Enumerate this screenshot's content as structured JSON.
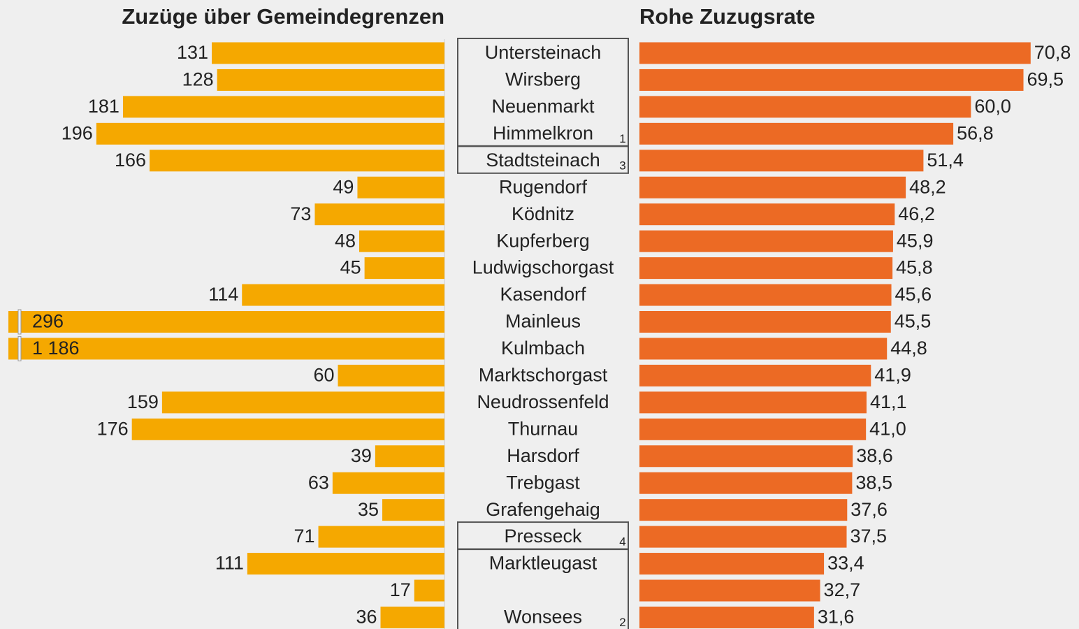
{
  "chart_data": [
    {
      "type": "bar",
      "title": "Zuzüge über Gemeindegrenzen",
      "color": "#f5a800",
      "xlim": [
        0,
        240
      ],
      "axis_break": true,
      "categories": [
        "Untersteinach",
        "Wirsberg",
        "Neuenmarkt",
        "Himmelkron",
        "Stadtsteinach",
        "Rugendorf",
        "Ködnitz",
        "Kupferberg",
        "Ludwigschorgast",
        "Kasendorf",
        "Mainleus",
        "Kulmbach",
        "Marktschorgast",
        "Neudrossenfeld",
        "Thurnau",
        "Harsdorf",
        "Trebgast",
        "Grafengehaig",
        "Presseck",
        "Marktleugast",
        null,
        "Wonsees"
      ],
      "values": [
        131,
        128,
        181,
        196,
        166,
        49,
        73,
        48,
        45,
        114,
        296,
        1186,
        60,
        159,
        176,
        39,
        63,
        35,
        71,
        111,
        17,
        36
      ],
      "value_labels": [
        "131",
        "128",
        "181",
        "196",
        "166",
        "49",
        "73",
        "48",
        "45",
        "114",
        "296",
        "1 186",
        "60",
        "159",
        "176",
        "39",
        "63",
        "35",
        "71",
        "111",
        "17",
        "36"
      ]
    },
    {
      "type": "bar",
      "title": "Rohe Zuzugsrate",
      "color": "#ec6a24",
      "xlim": [
        0,
        75
      ],
      "values": [
        70.8,
        69.5,
        60.0,
        56.8,
        51.4,
        48.2,
        46.2,
        45.9,
        45.8,
        45.6,
        45.5,
        44.8,
        41.9,
        41.1,
        41.0,
        38.6,
        38.5,
        37.6,
        37.5,
        33.4,
        32.7,
        31.6
      ],
      "value_labels": [
        "70,8",
        "69,5",
        "60,0",
        "56,8",
        "51,4",
        "48,2",
        "46,2",
        "45,9",
        "45,8",
        "45,6",
        "45,5",
        "44,8",
        "41,9",
        "41,1",
        "41,0",
        "38,6",
        "38,5",
        "37,6",
        "37,5",
        "33,4",
        "32,7",
        "31,6"
      ]
    }
  ],
  "annotations": [
    {
      "label": "1",
      "first": 0,
      "last": 3
    },
    {
      "label": "3",
      "first": 4,
      "last": 4
    },
    {
      "label": "4",
      "first": 18,
      "last": 18
    },
    {
      "label": "2",
      "first": 19,
      "last": 21
    }
  ]
}
